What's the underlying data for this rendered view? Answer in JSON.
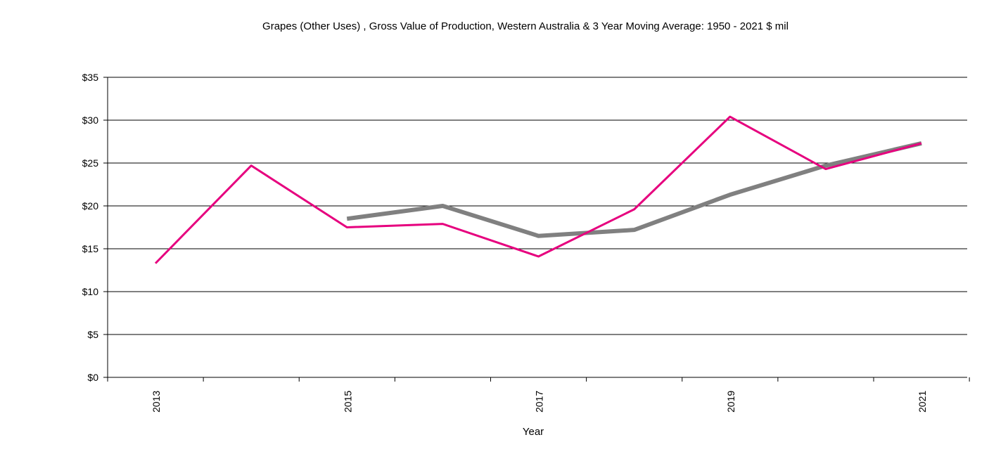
{
  "chart_data": {
    "type": "line",
    "title": "Grapes (Other Uses) , Gross Value of Production, Western Australia & 3 Year Moving Average: 1950 - 2021 $ mil",
    "xlabel": "Year",
    "ylabel": "",
    "x": [
      2013,
      2014,
      2015,
      2016,
      2017,
      2018,
      2019,
      2020,
      2021
    ],
    "x_tick_labels": [
      "2013",
      "2015",
      "2017",
      "2019",
      "2021"
    ],
    "ylim": [
      0,
      35
    ],
    "y_ticks": [
      0,
      5,
      10,
      15,
      20,
      25,
      30,
      35
    ],
    "y_tick_labels": [
      "$0",
      "$5",
      "$10",
      "$15",
      "$20",
      "$25",
      "$30",
      "$35"
    ],
    "grid": true,
    "legend": "none",
    "series": [
      {
        "color": "#e6007e",
        "values": [
          13.3,
          24.7,
          17.5,
          17.9,
          14.1,
          19.6,
          30.4,
          24.3,
          27.3
        ]
      },
      {
        "color": "#808080",
        "values": [
          null,
          null,
          18.5,
          20.0,
          16.5,
          17.2,
          21.3,
          24.7,
          27.3
        ]
      }
    ]
  }
}
